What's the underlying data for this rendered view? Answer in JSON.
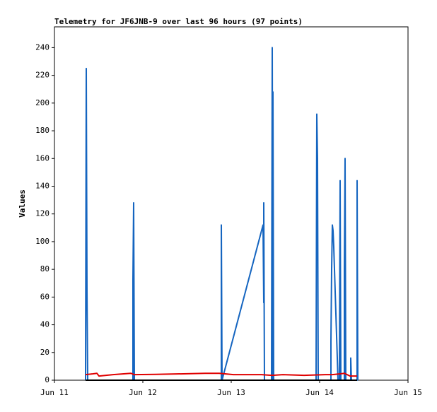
{
  "chart_data": {
    "type": "line",
    "title": "Telemetry for JF6JNB-9 over last 96 hours (97 points)",
    "y_label": "Values",
    "xlim": [
      0,
      4
    ],
    "xticks": [
      {
        "value": 0,
        "label": "Jun 11"
      },
      {
        "value": 1,
        "label": "Jun 12"
      },
      {
        "value": 2,
        "label": "Jun 13"
      },
      {
        "value": 3,
        "label": "Jun 14"
      },
      {
        "value": 4,
        "label": "Jun 15"
      }
    ],
    "ylim": [
      0,
      255
    ],
    "yticks": [
      0,
      20,
      40,
      60,
      80,
      100,
      120,
      140,
      160,
      180,
      200,
      220,
      240
    ],
    "grid": false,
    "series": [
      {
        "color": "#1565c0",
        "x": [
          0.352,
          0.36,
          0.368,
          0.376,
          0.888,
          0.888,
          0.896,
          0.904,
          1.888,
          1.888,
          1.896,
          2.36,
          2.368,
          2.368,
          2.376,
          2.456,
          2.464,
          2.472,
          2.472,
          2.48,
          2.96,
          2.968,
          2.976,
          2.984,
          3.128,
          3.128,
          3.136,
          3.144,
          3.152,
          3.16,
          3.208,
          3.224,
          3.232,
          3.24,
          3.28,
          3.28,
          3.288,
          3.296,
          3.352,
          3.352,
          3.36,
          3.424,
          3.424,
          3.432
        ],
        "values": [
          0,
          225,
          65,
          0,
          0,
          72,
          128,
          0,
          0,
          112,
          0,
          112,
          56,
          128,
          0,
          0,
          240,
          0,
          208,
          0,
          0,
          192,
          160,
          0,
          0,
          28,
          80,
          112,
          108,
          96,
          0,
          0,
          144,
          0,
          0,
          80,
          160,
          0,
          0,
          16,
          0,
          0,
          144,
          0
        ]
      },
      {
        "color": "#e00000",
        "x": [
          0.352,
          0.424,
          0.48,
          0.504,
          0.664,
          0.864,
          0.904,
          1.144,
          1.384,
          1.704,
          1.864,
          2.024,
          2.344,
          2.464,
          2.584,
          2.824,
          3.064,
          3.144,
          3.224,
          3.28,
          3.344,
          3.424
        ],
        "values": [
          4,
          4.5,
          5,
          3,
          4,
          5,
          4,
          4.2,
          4.5,
          5,
          5,
          4,
          4,
          3.5,
          4,
          3.5,
          4,
          4,
          4.5,
          5,
          3,
          3
        ]
      },
      {
        "color": "#000000",
        "x": [
          0.352,
          3.424
        ],
        "values": [
          0,
          0
        ]
      }
    ]
  }
}
